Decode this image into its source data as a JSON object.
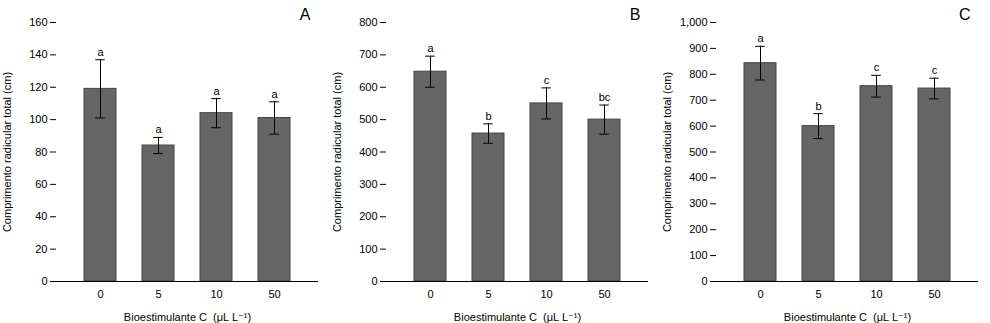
{
  "chart_data": [
    {
      "type": "bar",
      "title": "A",
      "categories": [
        "0",
        "5",
        "10",
        "50"
      ],
      "values": [
        119,
        84,
        104,
        101
      ],
      "errors": [
        18,
        5,
        9,
        10
      ],
      "annotations": [
        "a",
        "a",
        "a",
        "a"
      ],
      "color": "#666666",
      "ylabel": "Comprimento radicular total (cm)",
      "xlabel": "Bioestimulante C  (μL L⁻¹)",
      "ylim": [
        0,
        160
      ],
      "yticks": [
        0,
        20,
        40,
        60,
        80,
        100,
        120,
        140,
        160
      ]
    },
    {
      "type": "bar",
      "title": "B",
      "categories": [
        "0",
        "5",
        "10",
        "50"
      ],
      "values": [
        648,
        457,
        550,
        500
      ],
      "errors": [
        48,
        30,
        48,
        45
      ],
      "annotations": [
        "a",
        "b",
        "c",
        "bc"
      ],
      "color": "#666666",
      "ylabel": "Comprimento radicular total (cm)",
      "xlabel": "Bioestimulante C  (μL L⁻¹)",
      "ylim": [
        0,
        800
      ],
      "yticks": [
        0,
        100,
        200,
        300,
        400,
        500,
        600,
        700,
        800
      ]
    },
    {
      "type": "bar",
      "title": "C",
      "categories": [
        "0",
        "5",
        "10",
        "50"
      ],
      "values": [
        843,
        600,
        754,
        745
      ],
      "errors": [
        65,
        48,
        42,
        40
      ],
      "annotations": [
        "a",
        "b",
        "c",
        "c"
      ],
      "color": "#666666",
      "ylabel": "Comprimento radicular total (cm)",
      "xlabel": "Bioestimulante C  (μL L⁻¹)",
      "ylim": [
        0,
        1000
      ],
      "yticks": [
        0,
        100,
        200,
        300,
        400,
        500,
        600,
        700,
        800,
        900,
        1000
      ]
    }
  ]
}
